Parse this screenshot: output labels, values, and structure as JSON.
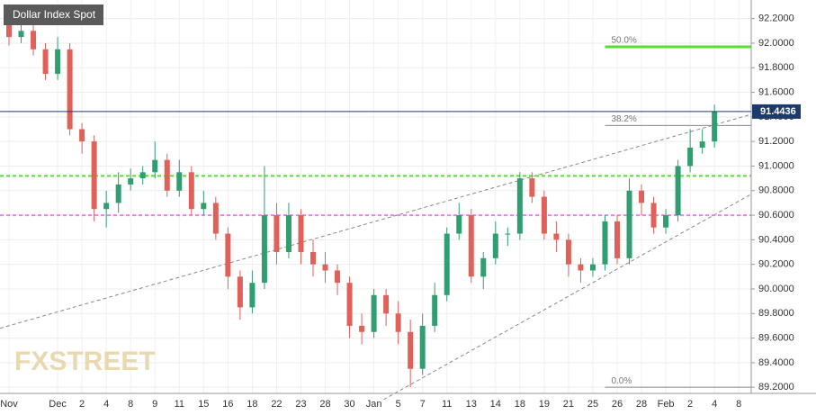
{
  "chart_data": {
    "type": "candlestick",
    "title": "Dollar Index Spot",
    "watermark": "FXSTREET",
    "categories": [
      "Nov",
      null,
      null,
      null,
      "Dec",
      null,
      "2",
      null,
      "4",
      null,
      "8",
      null,
      "9",
      null,
      "11",
      null,
      "15",
      null,
      "16",
      null,
      "18",
      null,
      "22",
      null,
      "23",
      null,
      "28",
      null,
      "30",
      null,
      "Jan",
      null,
      "5",
      null,
      "7",
      null,
      "11",
      null,
      "13",
      null,
      "14",
      null,
      "18",
      null,
      "19",
      null,
      "21",
      null,
      "25",
      null,
      "26",
      null,
      "28",
      null,
      "Feb",
      null,
      "2",
      null,
      "4",
      null,
      "8",
      null
    ],
    "open": [
      92.15,
      92.05,
      92.1,
      91.95,
      91.75,
      91.95,
      91.3,
      91.2,
      90.65,
      90.7,
      90.85,
      90.9,
      90.95,
      91.05,
      90.8,
      90.95,
      90.65,
      90.7,
      90.45,
      90.1,
      89.85,
      90.05,
      90.6,
      90.3,
      90.6,
      90.3,
      90.2,
      90.15,
      90.05,
      89.7,
      89.65,
      89.95,
      89.8,
      89.65,
      89.35,
      89.7,
      89.95,
      90.45,
      90.6,
      90.1,
      90.25,
      90.45,
      90.45,
      90.9,
      90.75,
      90.45,
      90.4,
      90.2,
      90.15,
      90.2,
      90.55,
      90.25,
      90.8,
      90.7,
      90.5,
      90.6,
      91.0,
      91.15,
      91.2,
      null,
      null,
      null
    ],
    "high": [
      92.2,
      92.18,
      92.15,
      92.0,
      92.05,
      92.0,
      91.35,
      91.25,
      90.8,
      90.95,
      90.98,
      91.0,
      91.2,
      91.1,
      91.05,
      91.0,
      90.8,
      90.75,
      90.5,
      90.15,
      90.15,
      91.0,
      90.7,
      90.7,
      90.65,
      90.4,
      90.3,
      90.2,
      90.1,
      89.8,
      90.0,
      90.0,
      89.9,
      89.75,
      89.8,
      90.05,
      90.5,
      90.7,
      90.65,
      90.3,
      90.55,
      90.5,
      90.95,
      90.95,
      90.8,
      90.55,
      90.45,
      90.25,
      90.25,
      90.6,
      90.6,
      90.9,
      90.85,
      90.75,
      90.65,
      91.05,
      91.3,
      91.3,
      91.5,
      null,
      null,
      null
    ],
    "low": [
      91.98,
      92.0,
      91.9,
      91.7,
      91.7,
      91.25,
      91.1,
      90.55,
      90.5,
      90.62,
      90.8,
      90.85,
      90.9,
      90.75,
      90.75,
      90.6,
      90.6,
      90.4,
      90.0,
      89.75,
      89.8,
      90.0,
      90.2,
      90.25,
      90.2,
      90.1,
      90.05,
      89.95,
      89.6,
      89.55,
      89.6,
      89.7,
      89.55,
      89.2,
      89.3,
      89.65,
      89.9,
      90.4,
      90.05,
      90.0,
      90.2,
      90.35,
      90.4,
      90.7,
      90.4,
      90.3,
      90.1,
      90.05,
      90.1,
      90.15,
      90.2,
      90.2,
      90.6,
      90.45,
      90.45,
      90.55,
      90.95,
      91.1,
      91.15,
      null,
      null,
      null
    ],
    "close": [
      92.05,
      92.1,
      91.95,
      91.75,
      91.95,
      91.3,
      91.2,
      90.65,
      90.7,
      90.85,
      90.9,
      90.95,
      91.05,
      90.8,
      90.95,
      90.65,
      90.7,
      90.45,
      90.1,
      89.85,
      90.05,
      90.6,
      90.3,
      90.6,
      90.3,
      90.2,
      90.15,
      90.05,
      89.7,
      89.65,
      89.95,
      89.8,
      89.65,
      89.35,
      89.7,
      89.95,
      90.45,
      90.6,
      90.1,
      90.25,
      90.45,
      90.45,
      90.9,
      90.75,
      90.45,
      90.4,
      90.2,
      90.15,
      90.2,
      90.55,
      90.25,
      90.8,
      90.7,
      90.5,
      90.6,
      91.0,
      91.15,
      91.2,
      91.4436,
      null,
      null,
      null
    ],
    "up_color": "#2f9e70",
    "down_color": "#e0605a",
    "last_price": 91.4436,
    "levels": [
      {
        "value": 91.97,
        "label": "50.0%",
        "color": "#55e02c",
        "style": "solid",
        "start": 49
      },
      {
        "value": 91.33,
        "label": "38.2%",
        "color": "#888888",
        "style": "thin",
        "start": 49
      },
      {
        "value": 90.92,
        "color": "#55e02c",
        "style": "dashed"
      },
      {
        "value": 90.6,
        "color": "#f07cf0",
        "style": "dashed"
      },
      {
        "value": 89.2,
        "label": "0.0%",
        "color": "#888888",
        "style": "thin",
        "start": 49
      }
    ],
    "trendlines": [
      {
        "x": [
          -0.74,
          61
        ],
        "y": [
          89.68,
          91.42
        ]
      },
      {
        "x": [
          30.8,
          61
        ],
        "y": [
          89.1,
          90.77
        ]
      }
    ],
    "ylim": [
      89.15,
      92.3
    ],
    "yticks": [
      {
        "value": 89.2,
        "label": "89.2000"
      },
      {
        "value": 89.4,
        "label": "89.4000"
      },
      {
        "value": 89.6,
        "label": "89.6000"
      },
      {
        "value": 89.8,
        "label": "89.8000"
      },
      {
        "value": 90.0,
        "label": "90.0000"
      },
      {
        "value": 90.2,
        "label": "90.2000"
      },
      {
        "value": 90.4,
        "label": "90.4000"
      },
      {
        "value": 90.6,
        "label": "90.6000"
      },
      {
        "value": 90.8,
        "label": "90.8000"
      },
      {
        "value": 91.0,
        "label": "91.0000"
      },
      {
        "value": 91.2,
        "label": "91.2000"
      },
      {
        "value": 91.4,
        "label": "91.4000"
      },
      {
        "value": 91.6,
        "label": "91.6000"
      },
      {
        "value": 91.8,
        "label": "91.8000"
      },
      {
        "value": 92.0,
        "label": "92.0000"
      },
      {
        "value": 92.2,
        "label": "92.2000"
      }
    ],
    "grid": true
  }
}
